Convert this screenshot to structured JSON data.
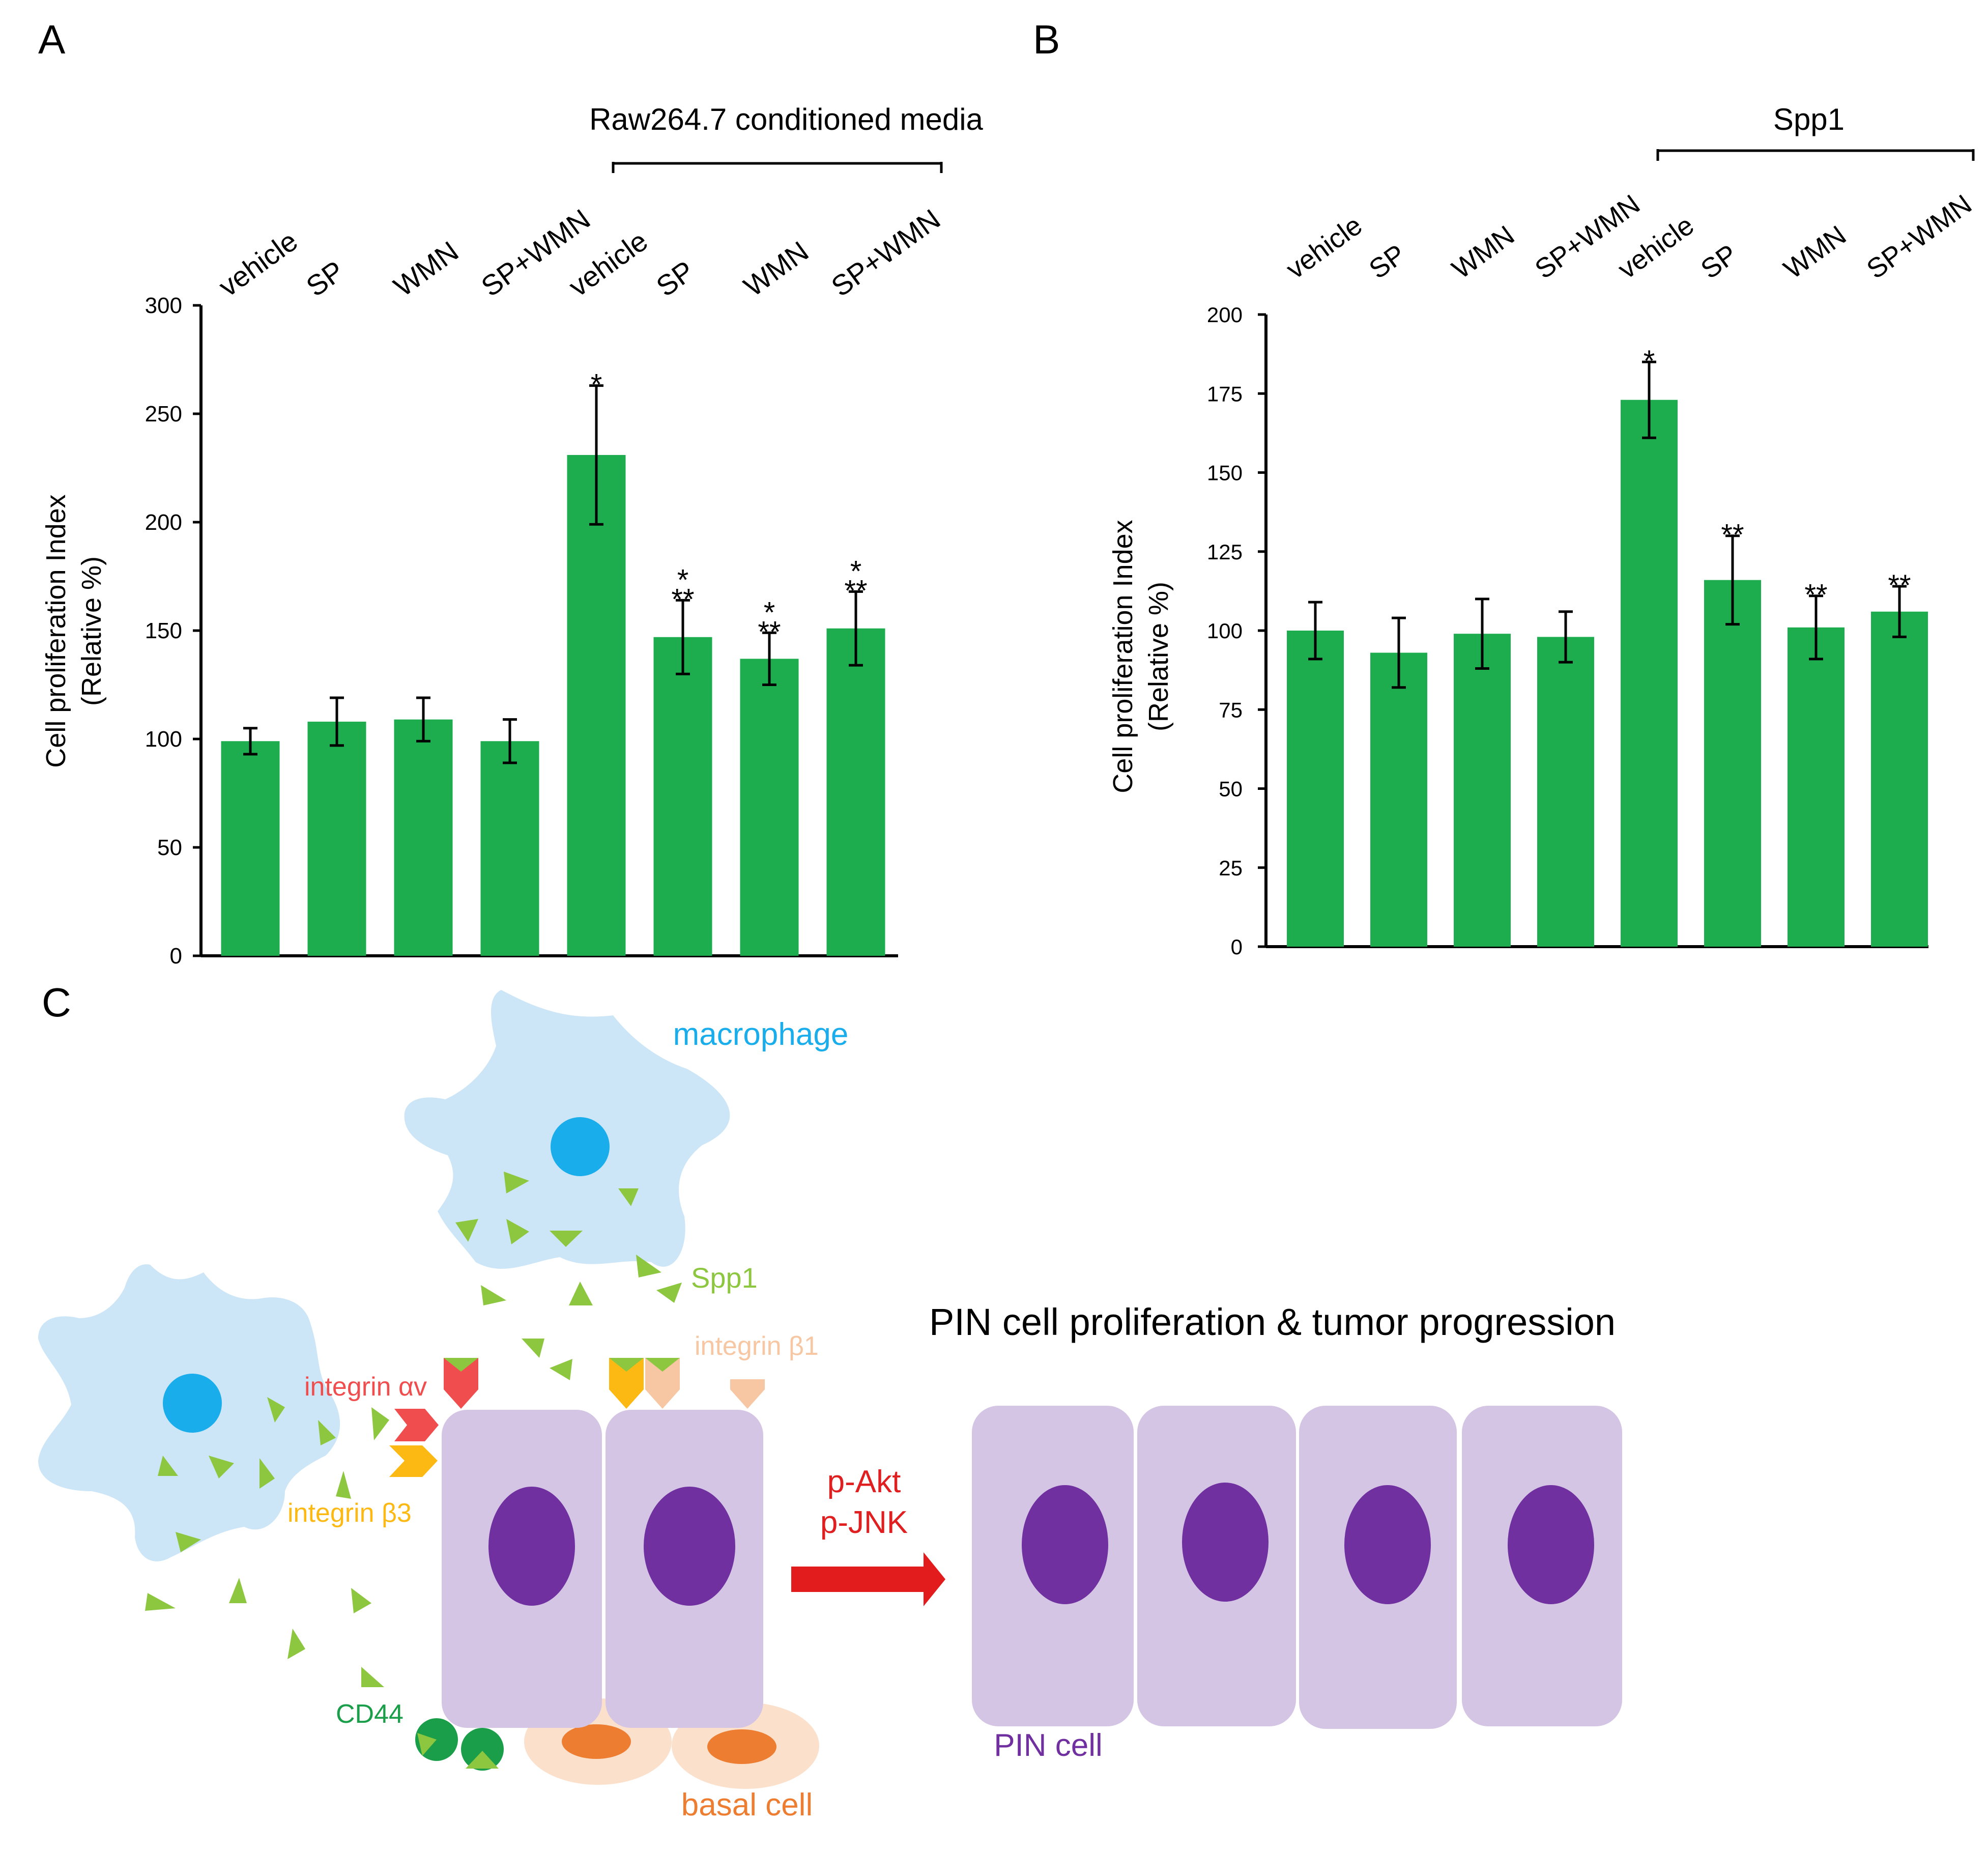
{
  "colors": {
    "bar": "#1DAD4E",
    "axis": "#000000",
    "macrophage_body": "#CCE6F7",
    "macrophage_nucleus": "#1AADEB",
    "spp1": "#8DC63F",
    "integrin_av": "#F04E4E",
    "integrin_b3": "#FDB913",
    "integrin_b1": "#F7C6A3",
    "cd44": "#1A9E4A",
    "pin_cell": "#D5C5E5",
    "pin_nucleus": "#7030A0",
    "basal_outer": "#FBE0CC",
    "basal_nucleus": "#ED7D31",
    "arrow": "#E21C1C",
    "label_red": "#E02020",
    "label_orange": "#ED7D31",
    "label_purple": "#7030A0"
  },
  "panels": {
    "a": "A",
    "b": "B",
    "c": "C"
  },
  "chart_data": [
    {
      "type": "bar",
      "panel": "A",
      "categories": [
        "vehicle",
        "SP",
        "WMN",
        "SP+WMN",
        "vehicle",
        "SP",
        "WMN",
        "SP+WMN"
      ],
      "values": [
        99,
        108,
        109,
        99,
        231,
        147,
        137,
        151
      ],
      "errors": [
        6,
        11,
        10,
        10,
        32,
        17,
        12,
        17
      ],
      "significance": [
        "",
        "",
        "",
        "",
        "*",
        "*\n**",
        "*\n**",
        "*\n**"
      ],
      "ylabel": "Cell proliferation Index",
      "ylabel2": "(Relative %)",
      "ylim": [
        0,
        300
      ],
      "yticks": [
        0,
        50,
        100,
        150,
        200,
        250,
        300
      ],
      "group_label": "Raw264.7 conditioned media",
      "group_start_index": 4
    },
    {
      "type": "bar",
      "panel": "B",
      "categories": [
        "vehicle",
        "SP",
        "WMN",
        "SP+WMN",
        "vehicle",
        "SP",
        "WMN",
        "SP+WMN"
      ],
      "values": [
        100,
        93,
        99,
        98,
        173,
        116,
        101,
        106
      ],
      "errors": [
        9,
        11,
        11,
        8,
        12,
        14,
        10,
        8
      ],
      "significance": [
        "",
        "",
        "",
        "",
        "*",
        "**",
        "**",
        "**"
      ],
      "ylabel": "Cell proliferation Index",
      "ylabel2": "(Relative %)",
      "ylim": [
        0,
        200
      ],
      "yticks": [
        0,
        25,
        50,
        75,
        100,
        125,
        150,
        175,
        200
      ],
      "group_label": "Spp1",
      "group_start_index": 4
    }
  ],
  "diagram": {
    "macrophage": "macrophage",
    "spp1": "Spp1",
    "integrin_av": "integrin αv",
    "integrin_b3": "integrin β3",
    "integrin_b1": "integrin β1",
    "cd44": "CD44",
    "basal_cell": "basal cell",
    "signal_1": "p-Akt",
    "signal_2": "p-JNK",
    "outcome": "PIN cell proliferation & tumor progression",
    "pin_cell": "PIN cell"
  }
}
